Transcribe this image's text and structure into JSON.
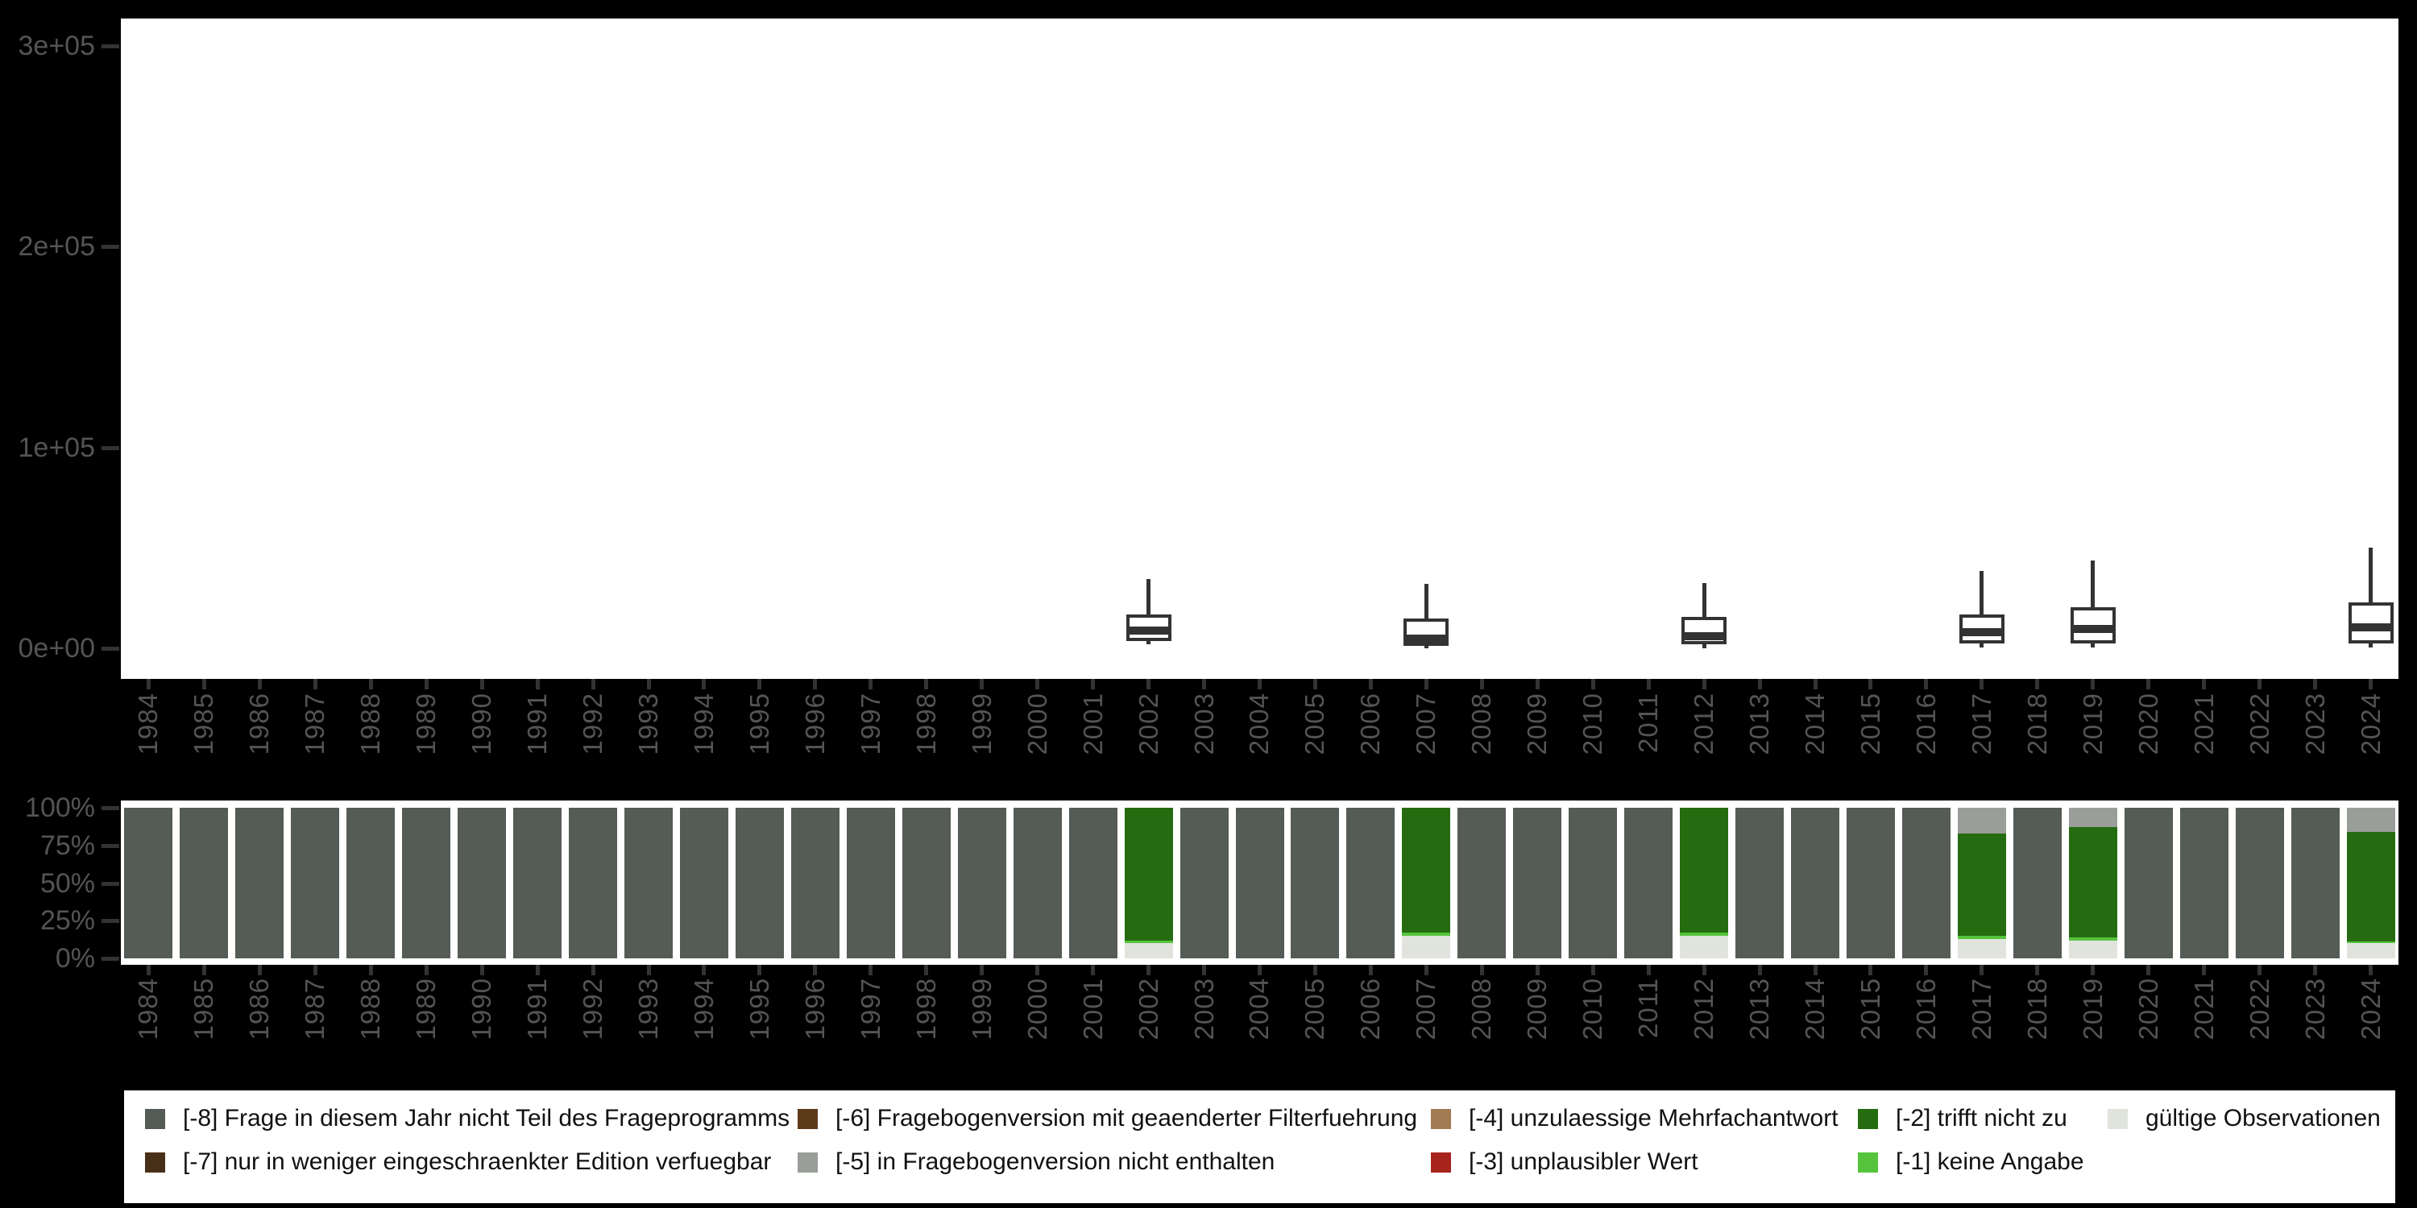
{
  "colors": {
    "background": "#000000",
    "panel": "#ffffff",
    "axis_text": "#545454",
    "tick": "#333333",
    "box_stroke": "#333333",
    "legend_text": "#111111",
    "categories": {
      "m8": "#555B55",
      "m7": "#483018",
      "m6": "#5D3A1A",
      "m5": "#999E99",
      "m4": "#A17B51",
      "m3": "#A6241C",
      "m2": "#256B10",
      "m1": "#55C43C",
      "valid": "#E0E4DD"
    }
  },
  "chart_data": [
    {
      "type": "boxplot",
      "title": "",
      "xlabel": "",
      "ylabel": "",
      "ylim": [
        0,
        300000
      ],
      "grid": false,
      "yticks": [
        {
          "value": 0,
          "label": "0e+00"
        },
        {
          "value": 100000,
          "label": "1e+05"
        },
        {
          "value": 200000,
          "label": "2e+05"
        },
        {
          "value": 300000,
          "label": "3e+05"
        }
      ],
      "x": [
        1984,
        1985,
        1986,
        1987,
        1988,
        1989,
        1990,
        1991,
        1992,
        1993,
        1994,
        1995,
        1996,
        1997,
        1998,
        1999,
        2000,
        2001,
        2002,
        2003,
        2004,
        2005,
        2006,
        2007,
        2008,
        2009,
        2010,
        2011,
        2012,
        2013,
        2014,
        2015,
        2016,
        2017,
        2018,
        2019,
        2020,
        2021,
        2022,
        2023,
        2024
      ],
      "boxes": [
        {
          "year": 2002,
          "min": 2000,
          "q1": 3500,
          "median": 9000,
          "q3": 17000,
          "max": 34500
        },
        {
          "year": 2007,
          "min": 0,
          "q1": 1000,
          "median": 5000,
          "q3": 15000,
          "max": 32000
        },
        {
          "year": 2012,
          "min": 0,
          "q1": 2000,
          "median": 6000,
          "q3": 15500,
          "max": 32500
        },
        {
          "year": 2017,
          "min": 500,
          "q1": 2500,
          "median": 8000,
          "q3": 17000,
          "max": 38500
        },
        {
          "year": 2019,
          "min": 500,
          "q1": 2500,
          "median": 9500,
          "q3": 20500,
          "max": 43500
        },
        {
          "year": 2024,
          "min": 500,
          "q1": 2500,
          "median": 10500,
          "q3": 23000,
          "max": 50000
        }
      ]
    },
    {
      "type": "bar",
      "stacked": true,
      "units": "percent",
      "title": "",
      "ylim": [
        0,
        100
      ],
      "grid": false,
      "yticks": [
        {
          "value": 0,
          "label": "0%"
        },
        {
          "value": 25,
          "label": "25%"
        },
        {
          "value": 50,
          "label": "50%"
        },
        {
          "value": 75,
          "label": "75%"
        },
        {
          "value": 100,
          "label": "100%"
        }
      ],
      "x": [
        1984,
        1985,
        1986,
        1987,
        1988,
        1989,
        1990,
        1991,
        1992,
        1993,
        1994,
        1995,
        1996,
        1997,
        1998,
        1999,
        2000,
        2001,
        2002,
        2003,
        2004,
        2005,
        2006,
        2007,
        2008,
        2009,
        2010,
        2011,
        2012,
        2013,
        2014,
        2015,
        2016,
        2017,
        2018,
        2019,
        2020,
        2021,
        2022,
        2023,
        2024
      ],
      "stack_order_top_to_bottom": [
        "m8",
        "m5",
        "m2",
        "m1",
        "valid"
      ],
      "bars": [
        {
          "year": 1984,
          "m8": 100
        },
        {
          "year": 1985,
          "m8": 100
        },
        {
          "year": 1986,
          "m8": 100
        },
        {
          "year": 1987,
          "m8": 100
        },
        {
          "year": 1988,
          "m8": 100
        },
        {
          "year": 1989,
          "m8": 100
        },
        {
          "year": 1990,
          "m8": 100
        },
        {
          "year": 1991,
          "m8": 100
        },
        {
          "year": 1992,
          "m8": 100
        },
        {
          "year": 1993,
          "m8": 100
        },
        {
          "year": 1994,
          "m8": 100
        },
        {
          "year": 1995,
          "m8": 100
        },
        {
          "year": 1996,
          "m8": 100
        },
        {
          "year": 1997,
          "m8": 100
        },
        {
          "year": 1998,
          "m8": 100
        },
        {
          "year": 1999,
          "m8": 100
        },
        {
          "year": 2000,
          "m8": 100
        },
        {
          "year": 2001,
          "m8": 100
        },
        {
          "year": 2002,
          "m2": 88,
          "m1": 2,
          "valid": 10
        },
        {
          "year": 2003,
          "m8": 100
        },
        {
          "year": 2004,
          "m8": 100
        },
        {
          "year": 2005,
          "m8": 100
        },
        {
          "year": 2006,
          "m8": 100
        },
        {
          "year": 2007,
          "m2": 83,
          "m1": 2,
          "valid": 15
        },
        {
          "year": 2008,
          "m8": 100
        },
        {
          "year": 2009,
          "m8": 100
        },
        {
          "year": 2010,
          "m8": 100
        },
        {
          "year": 2011,
          "m8": 100
        },
        {
          "year": 2012,
          "m2": 83,
          "m1": 2,
          "valid": 15
        },
        {
          "year": 2013,
          "m8": 100
        },
        {
          "year": 2014,
          "m8": 100
        },
        {
          "year": 2015,
          "m8": 100
        },
        {
          "year": 2016,
          "m8": 100
        },
        {
          "year": 2017,
          "m5": 17,
          "m2": 68,
          "m1": 2,
          "valid": 13
        },
        {
          "year": 2018,
          "m8": 100
        },
        {
          "year": 2019,
          "m5": 13,
          "m2": 73,
          "m1": 2,
          "valid": 12
        },
        {
          "year": 2020,
          "m8": 100
        },
        {
          "year": 2021,
          "m8": 100
        },
        {
          "year": 2022,
          "m8": 100
        },
        {
          "year": 2023,
          "m8": 100
        },
        {
          "year": 2024,
          "m5": 16,
          "m2": 73,
          "m1": 1,
          "valid": 10
        }
      ]
    }
  ],
  "legend": {
    "columns": [
      [
        {
          "label": "[-8] Frage in diesem Jahr nicht Teil des Frageprogramms",
          "color": "m8"
        },
        {
          "label": "[-7] nur in weniger eingeschraenkter Edition verfuegbar",
          "color": "m7"
        }
      ],
      [
        {
          "label": "[-6] Fragebogenversion mit geaenderter Filterfuehrung",
          "color": "m6"
        },
        {
          "label": "[-5] in Fragebogenversion nicht enthalten",
          "color": "m5"
        }
      ],
      [
        {
          "label": "[-4] unzulaessige Mehrfachantwort",
          "color": "m4"
        },
        {
          "label": "[-3] unplausibler Wert",
          "color": "m3"
        }
      ],
      [
        {
          "label": "[-2] trifft nicht zu",
          "color": "m2"
        },
        {
          "label": "[-1] keine Angabe",
          "color": "m1"
        }
      ],
      [
        {
          "label": "gültige Observationen",
          "color": "valid"
        }
      ]
    ]
  }
}
